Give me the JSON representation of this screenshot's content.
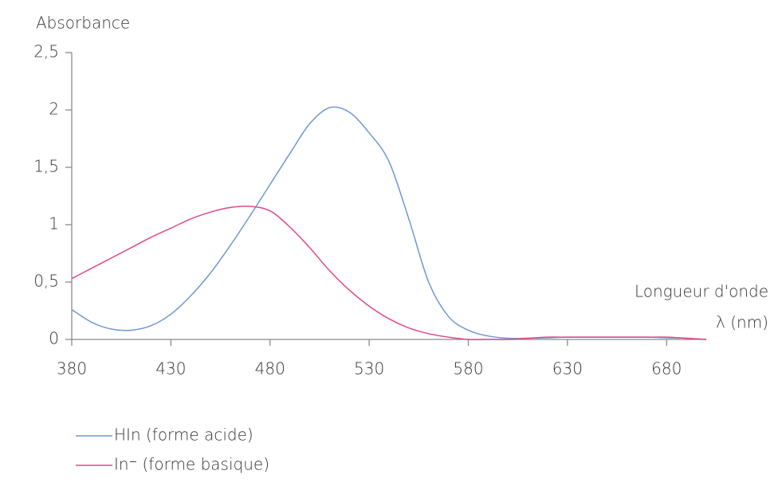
{
  "chart_data": {
    "type": "line",
    "ylabel": "Absorbance",
    "xlabel": [
      "Longueur d'onde",
      "λ (nm)"
    ],
    "x": [
      380,
      390,
      400,
      410,
      420,
      430,
      440,
      450,
      460,
      470,
      480,
      490,
      500,
      510,
      520,
      530,
      540,
      550,
      560,
      570,
      580,
      590,
      600,
      610,
      620,
      630,
      640,
      650,
      660,
      670,
      680,
      690,
      700
    ],
    "series": [
      {
        "name": "HIn (forme acide)",
        "color": "#6f97d6",
        "values": [
          0.26,
          0.15,
          0.09,
          0.08,
          0.12,
          0.22,
          0.38,
          0.58,
          0.82,
          1.08,
          1.35,
          1.62,
          1.88,
          2.02,
          1.98,
          1.8,
          1.55,
          1.05,
          0.5,
          0.2,
          0.08,
          0.03,
          0.01,
          0.01,
          0.015,
          0.02,
          0.02,
          0.02,
          0.02,
          0.02,
          0.015,
          0.01,
          0
        ]
      },
      {
        "name": "In⁻ (forme basique)",
        "color": "#e0488a",
        "values": [
          0.53,
          0.62,
          0.71,
          0.8,
          0.89,
          0.97,
          1.05,
          1.11,
          1.15,
          1.16,
          1.12,
          0.98,
          0.8,
          0.6,
          0.43,
          0.29,
          0.18,
          0.1,
          0.05,
          0.02,
          0,
          0,
          0,
          0.01,
          0.02,
          0.02,
          0.02,
          0.02,
          0.02,
          0.02,
          0.02,
          0.01,
          0
        ]
      }
    ],
    "xlim": [
      380,
      700
    ],
    "xticks": [
      380,
      430,
      480,
      530,
      580,
      630,
      680
    ],
    "ylim": [
      0,
      2.5
    ],
    "yticks": [
      0,
      {
        "value": 0.5,
        "label": "0,5"
      },
      1,
      {
        "value": 1.5,
        "label": "1,5"
      },
      2,
      {
        "value": 2.5,
        "label": "2,5"
      }
    ],
    "grid": false,
    "legend": "bottom"
  }
}
